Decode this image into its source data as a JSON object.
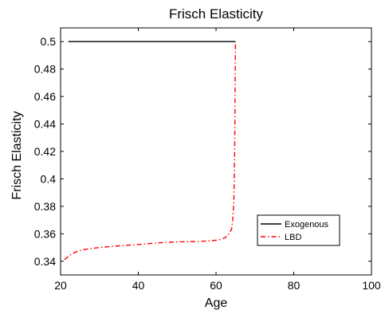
{
  "chart_data": {
    "type": "line",
    "title": "Frisch Elasticity",
    "xlabel": "Age",
    "ylabel": "Frisch Elasticity",
    "xlim": [
      20,
      100
    ],
    "ylim": [
      0.33,
      0.51
    ],
    "xticks": [
      20,
      40,
      60,
      80,
      100
    ],
    "yticks": [
      0.34,
      0.36,
      0.38,
      0.4,
      0.42,
      0.44,
      0.46,
      0.48,
      0.5
    ],
    "xtick_labels": [
      "20",
      "40",
      "60",
      "80",
      "100"
    ],
    "ytick_labels": [
      "0.34",
      "0.36",
      "0.38",
      "0.4",
      "0.42",
      "0.44",
      "0.46",
      "0.48",
      "0.5"
    ],
    "grid": false,
    "legend_position": "lower-right",
    "series": [
      {
        "name": "Exogenous",
        "color": "#000000",
        "style": "solid",
        "x": [
          22,
          65
        ],
        "y": [
          0.5,
          0.5
        ]
      },
      {
        "name": "LBD",
        "color": "#ff0000",
        "style": "dash-dot",
        "x": [
          21,
          22,
          23,
          24,
          25,
          26,
          28,
          30,
          32,
          35,
          38,
          40,
          42,
          45,
          48,
          50,
          52,
          55,
          58,
          60,
          61,
          62,
          62.5,
          63,
          63.5,
          64,
          64.3,
          64.6,
          64.8,
          65
        ],
        "y": [
          0.3412,
          0.3435,
          0.3455,
          0.3468,
          0.3478,
          0.3485,
          0.3493,
          0.35,
          0.3505,
          0.3512,
          0.3518,
          0.3522,
          0.3527,
          0.3533,
          0.3538,
          0.3541,
          0.3542,
          0.3543,
          0.3548,
          0.3553,
          0.3558,
          0.3567,
          0.3575,
          0.3588,
          0.3605,
          0.3635,
          0.37,
          0.385,
          0.42,
          0.5
        ]
      }
    ]
  }
}
